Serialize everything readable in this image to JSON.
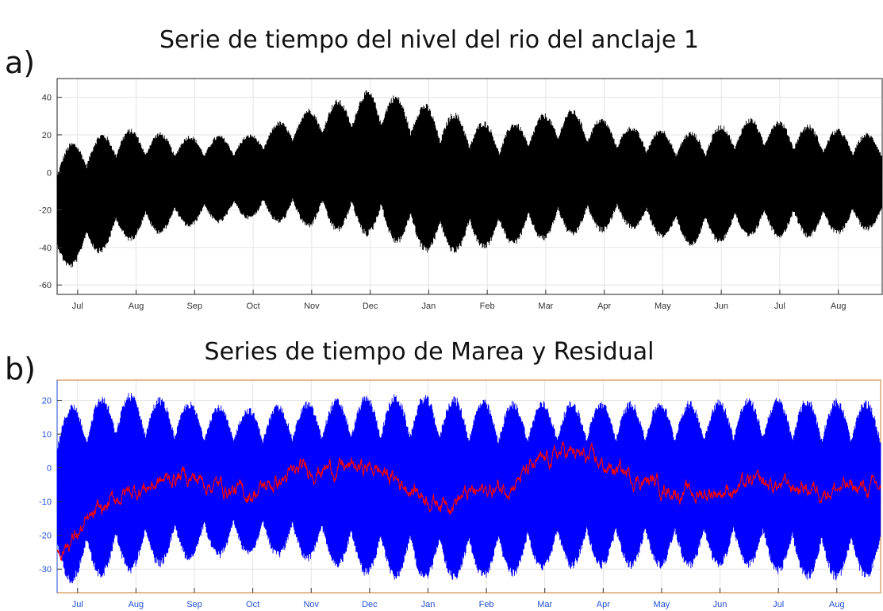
{
  "chart_data": [
    {
      "type": "line",
      "panel_label": "a)",
      "title": "Serie de tiempo del nivel del rio del anclaje 1",
      "xlabel": "",
      "ylabel": "",
      "ylim": [
        -65,
        50
      ],
      "yticks": [
        -60,
        -40,
        -20,
        0,
        20,
        40
      ],
      "xticks": [
        "Jul",
        "Aug",
        "Sep",
        "Oct",
        "Nov",
        "Dec",
        "Jan",
        "Feb",
        "Mar",
        "Apr",
        "May",
        "Jun",
        "Jul",
        "Aug"
      ],
      "grid": true,
      "series": [
        {
          "color": "#000000",
          "envelope_months": [
            "Jul",
            "Aug",
            "Sep",
            "Oct",
            "Nov",
            "Dec",
            "Jan",
            "Feb",
            "Mar",
            "Apr",
            "May",
            "Jun",
            "Jul",
            "Aug"
          ],
          "envelope_max": [
            14,
            24,
            20,
            20,
            35,
            45,
            35,
            25,
            35,
            25,
            22,
            30,
            25,
            20
          ],
          "envelope_min": [
            -55,
            -38,
            -30,
            -25,
            -30,
            -35,
            -45,
            -40,
            -35,
            -30,
            -40,
            -35,
            -35,
            -30
          ]
        }
      ]
    },
    {
      "type": "line",
      "panel_label": "b)",
      "title": "Series de tiempo de Marea  y Residual",
      "xlabel": "",
      "ylabel": "",
      "ylim": [
        -37,
        26
      ],
      "yticks": [
        -30,
        -20,
        -10,
        0,
        10,
        20
      ],
      "xticks": [
        "Jul",
        "Aug",
        "Sep",
        "Oct",
        "Nov",
        "Dec",
        "Jan",
        "Feb",
        "Mar",
        "Apr",
        "May",
        "Jun",
        "Jul",
        "Aug"
      ],
      "grid": true,
      "series": [
        {
          "color": "#0000ff",
          "envelope_months": [
            "Jul",
            "Aug",
            "Sep",
            "Oct",
            "Nov",
            "Dec",
            "Jan",
            "Feb",
            "Mar",
            "Apr",
            "May",
            "Jun",
            "Jul",
            "Aug"
          ],
          "envelope_max": [
            18,
            23,
            20,
            18,
            20,
            22,
            22,
            20,
            20,
            20,
            20,
            21,
            21,
            20
          ],
          "envelope_min": [
            -35,
            -32,
            -28,
            -26,
            -28,
            -33,
            -34,
            -33,
            -30,
            -30,
            -30,
            -30,
            -34,
            -33
          ]
        },
        {
          "color": "#ff0000",
          "residual_months": [
            "Jul",
            "Aug",
            "Sep",
            "Oct",
            "Nov",
            "Dec",
            "Jan",
            "Feb",
            "Mar",
            "Apr",
            "May",
            "Jun",
            "Jul",
            "Aug"
          ],
          "residual_mean": [
            -25,
            -8,
            -2,
            -8,
            0,
            0,
            -10,
            -6,
            5,
            -2,
            -8,
            -5,
            -6,
            -6
          ]
        }
      ]
    }
  ]
}
